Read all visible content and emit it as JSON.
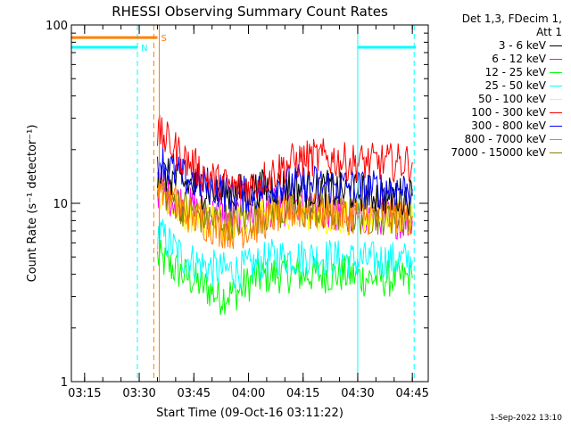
{
  "legend": {
    "header": [
      "Det 1,3, FDecim 1,",
      "Att 1"
    ],
    "entries": [
      {
        "label": "3 - 6 keV",
        "color": "#000000"
      },
      {
        "label": "6 - 12 keV",
        "color": "#ff00ff"
      },
      {
        "label": "12 - 25 keV",
        "color": "#00ff00"
      },
      {
        "label": "25 - 50 keV",
        "color": "#00ffff"
      },
      {
        "label": "50 - 100 keV",
        "color": "#ffff00"
      },
      {
        "label": "100 - 300 keV",
        "color": "#ff0000"
      },
      {
        "label": "300 - 800 keV",
        "color": "#0000ff"
      },
      {
        "label": "800 - 7000 keV",
        "color": "#ff8000"
      },
      {
        "label": "7000 - 15000 keV",
        "color": "#808000"
      }
    ]
  },
  "footer": {
    "stamp": "1-Sep-2022 13:10"
  },
  "chart_data": {
    "type": "line",
    "title": "RHESSI Observing Summary Count Rates",
    "xlabel": "Start Time (09-Oct-16 03:11:22)",
    "ylabel": "Count Rate (s⁻¹ detector⁻¹)",
    "y_scale": "log",
    "ylim": [
      1,
      100
    ],
    "xlim_minutes_since_0311": [
      0,
      98
    ],
    "x_ticks": [
      "03:15",
      "03:30",
      "03:45",
      "04:00",
      "04:15",
      "04:30",
      "04:45"
    ],
    "y_ticks": [
      "1",
      "10",
      "100"
    ],
    "x": [
      "03:35",
      "03:38",
      "03:42",
      "03:47",
      "03:52",
      "03:57",
      "04:02",
      "04:07",
      "04:12",
      "04:17",
      "04:22",
      "04:27",
      "04:32",
      "04:37",
      "04:42",
      "04:45"
    ],
    "series": [
      {
        "name": "3 - 6 keV",
        "color": "#000000",
        "values": [
          15,
          14,
          13,
          12,
          11.5,
          11.5,
          12,
          12.5,
          12.5,
          12,
          12,
          11.5,
          11.5,
          11,
          11,
          11
        ]
      },
      {
        "name": "6 - 12 keV",
        "color": "#ff00ff",
        "values": [
          12,
          11,
          10,
          9,
          8.5,
          8.5,
          9,
          9.5,
          9.5,
          9,
          9,
          8.5,
          8.5,
          8.5,
          8,
          8
        ]
      },
      {
        "name": "12 - 25 keV",
        "color": "#00ff00",
        "values": [
          5,
          4.5,
          4,
          3.5,
          3,
          3.2,
          3.8,
          4,
          4,
          4,
          4,
          4,
          3.8,
          3.8,
          3.8,
          3.8
        ]
      },
      {
        "name": "25 - 50 keV",
        "color": "#00ffff",
        "values": [
          7,
          6,
          5,
          4.5,
          4.2,
          4.2,
          4.5,
          5,
          5,
          5,
          5,
          4.8,
          4.8,
          4.8,
          4.8,
          4.8
        ]
      },
      {
        "name": "50 - 100 keV",
        "color": "#ffff00",
        "values": [
          12,
          10,
          9,
          8.5,
          8,
          8,
          8.5,
          9,
          9,
          9,
          8.5,
          8.5,
          8.5,
          8.5,
          8.5,
          8.5
        ]
      },
      {
        "name": "100 - 300 keV",
        "color": "#ff0000",
        "values": [
          25,
          22,
          18,
          15,
          13,
          12,
          13,
          15,
          17,
          18,
          18,
          17,
          17,
          17,
          17,
          17
        ]
      },
      {
        "name": "300 - 800 keV",
        "color": "#0000ff",
        "values": [
          18,
          16,
          14,
          13,
          12,
          11,
          11.5,
          12.5,
          13,
          13,
          12.5,
          12.5,
          12,
          12,
          12,
          12
        ]
      },
      {
        "name": "800 - 7000 keV",
        "color": "#ff8000",
        "values": [
          14,
          11,
          9,
          8,
          7.2,
          7,
          7.5,
          8.5,
          9,
          9,
          9,
          8.5,
          8.5,
          8.5,
          8.5,
          8.5
        ]
      },
      {
        "name": "7000 - 15000 keV",
        "color": "#808000",
        "values": [
          13,
          11,
          9.5,
          8.5,
          8,
          8,
          8.5,
          9,
          9,
          9,
          9,
          8.5,
          8.5,
          8.5,
          8.5,
          8.5
        ]
      }
    ],
    "flag_bars": [
      {
        "label": "S",
        "color": "#ff8000",
        "x_start": "03:11:22",
        "x_end": "03:35",
        "level": 85
      },
      {
        "label": "N",
        "color": "#00ffff",
        "x_start": "03:11:22",
        "x_end": "03:29:30",
        "level": 75
      },
      {
        "label": "",
        "color": "#00ffff",
        "x_start": "04:30",
        "x_end": "04:46",
        "level": 75
      }
    ],
    "vertical_markers": [
      {
        "x": "03:11:22",
        "color": "#00ffff",
        "style": "solid"
      },
      {
        "x": "03:29:30",
        "color": "#00ffff",
        "style": "dashed"
      },
      {
        "x": "03:34:00",
        "color": "#ff8000",
        "style": "dashed"
      },
      {
        "x": "03:35:30",
        "color": "#ff8000",
        "style": "solid"
      },
      {
        "x": "04:30:00",
        "color": "#00ffff",
        "style": "solid"
      },
      {
        "x": "04:45:30",
        "color": "#00ffff",
        "style": "dashed"
      }
    ]
  }
}
